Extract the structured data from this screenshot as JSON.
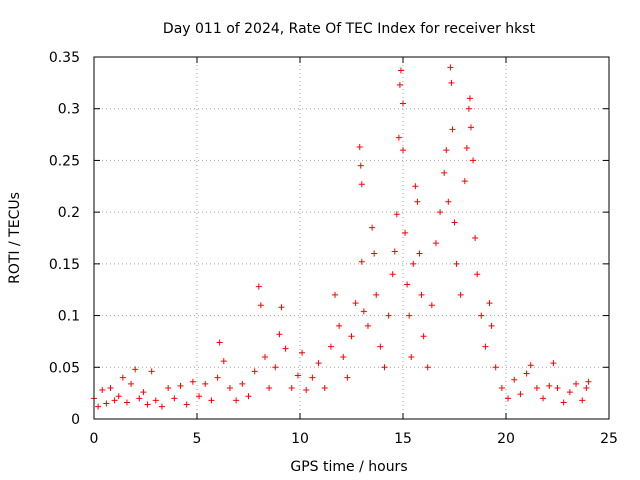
{
  "chart_data": {
    "type": "scatter",
    "title": "Day 011 of 2024, Rate Of TEC Index for receiver hkst",
    "xlabel": "GPS time / hours",
    "ylabel": "ROTI / TECUs",
    "xlim": [
      0,
      25
    ],
    "ylim": [
      0,
      0.35
    ],
    "x_ticks": [
      0,
      5,
      10,
      15,
      20,
      25
    ],
    "y_ticks": [
      0,
      0.05,
      0.1,
      0.15,
      0.2,
      0.25,
      0.3,
      0.35
    ],
    "x_tick_labels": [
      "0",
      "5",
      "10",
      "15",
      "20",
      "25"
    ],
    "y_tick_labels": [
      "0",
      "0.05",
      "0.1",
      "0.15",
      "0.2",
      "0.25",
      "0.3",
      "0.35"
    ],
    "grid": true,
    "marker": "+",
    "color": "#ff0000",
    "series": [
      {
        "points": [
          [
            0.0,
            0.02
          ],
          [
            0.2,
            0.012
          ],
          [
            0.4,
            0.028
          ],
          [
            0.6,
            0.015
          ],
          [
            0.8,
            0.03
          ],
          [
            1.0,
            0.018
          ],
          [
            1.2,
            0.022
          ],
          [
            1.4,
            0.04
          ],
          [
            1.6,
            0.016
          ],
          [
            1.8,
            0.034
          ],
          [
            2.0,
            0.048
          ],
          [
            2.2,
            0.02
          ],
          [
            2.4,
            0.026
          ],
          [
            2.6,
            0.014
          ],
          [
            2.8,
            0.046
          ],
          [
            3.0,
            0.018
          ],
          [
            3.3,
            0.012
          ],
          [
            3.6,
            0.03
          ],
          [
            3.9,
            0.02
          ],
          [
            4.2,
            0.032
          ],
          [
            4.5,
            0.014
          ],
          [
            4.8,
            0.036
          ],
          [
            5.1,
            0.022
          ],
          [
            5.4,
            0.034
          ],
          [
            5.7,
            0.018
          ],
          [
            6.0,
            0.04
          ],
          [
            6.1,
            0.074
          ],
          [
            6.3,
            0.056
          ],
          [
            6.6,
            0.03
          ],
          [
            6.9,
            0.018
          ],
          [
            7.2,
            0.034
          ],
          [
            7.5,
            0.022
          ],
          [
            7.8,
            0.046
          ],
          [
            8.0,
            0.128
          ],
          [
            8.1,
            0.11
          ],
          [
            8.3,
            0.06
          ],
          [
            8.5,
            0.03
          ],
          [
            8.8,
            0.05
          ],
          [
            9.0,
            0.082
          ],
          [
            9.1,
            0.108
          ],
          [
            9.3,
            0.068
          ],
          [
            9.6,
            0.03
          ],
          [
            9.9,
            0.042
          ],
          [
            10.1,
            0.064
          ],
          [
            10.3,
            0.028
          ],
          [
            10.6,
            0.04
          ],
          [
            10.9,
            0.054
          ],
          [
            11.2,
            0.03
          ],
          [
            11.5,
            0.07
          ],
          [
            11.7,
            0.12
          ],
          [
            11.9,
            0.09
          ],
          [
            12.1,
            0.06
          ],
          [
            12.3,
            0.04
          ],
          [
            12.5,
            0.08
          ],
          [
            12.7,
            0.112
          ],
          [
            12.9,
            0.263
          ],
          [
            12.95,
            0.245
          ],
          [
            13.0,
            0.227
          ],
          [
            13.0,
            0.152
          ],
          [
            13.1,
            0.104
          ],
          [
            13.3,
            0.09
          ],
          [
            13.5,
            0.185
          ],
          [
            13.6,
            0.16
          ],
          [
            13.7,
            0.12
          ],
          [
            13.9,
            0.07
          ],
          [
            14.1,
            0.05
          ],
          [
            14.3,
            0.1
          ],
          [
            14.5,
            0.14
          ],
          [
            14.6,
            0.162
          ],
          [
            14.7,
            0.198
          ],
          [
            14.8,
            0.272
          ],
          [
            14.85,
            0.323
          ],
          [
            14.9,
            0.337
          ],
          [
            15.0,
            0.305
          ],
          [
            15.0,
            0.26
          ],
          [
            15.1,
            0.18
          ],
          [
            15.2,
            0.13
          ],
          [
            15.3,
            0.1
          ],
          [
            15.4,
            0.06
          ],
          [
            15.5,
            0.15
          ],
          [
            15.6,
            0.225
          ],
          [
            15.7,
            0.21
          ],
          [
            15.8,
            0.16
          ],
          [
            15.9,
            0.12
          ],
          [
            16.0,
            0.08
          ],
          [
            16.2,
            0.05
          ],
          [
            16.4,
            0.11
          ],
          [
            16.6,
            0.17
          ],
          [
            16.8,
            0.2
          ],
          [
            17.0,
            0.238
          ],
          [
            17.1,
            0.26
          ],
          [
            17.2,
            0.21
          ],
          [
            17.3,
            0.34
          ],
          [
            17.35,
            0.325
          ],
          [
            17.4,
            0.28
          ],
          [
            17.5,
            0.19
          ],
          [
            17.6,
            0.15
          ],
          [
            17.8,
            0.12
          ],
          [
            18.0,
            0.23
          ],
          [
            18.1,
            0.262
          ],
          [
            18.2,
            0.3
          ],
          [
            18.25,
            0.31
          ],
          [
            18.3,
            0.282
          ],
          [
            18.4,
            0.25
          ],
          [
            18.5,
            0.175
          ],
          [
            18.6,
            0.14
          ],
          [
            18.8,
            0.1
          ],
          [
            19.0,
            0.07
          ],
          [
            19.2,
            0.112
          ],
          [
            19.3,
            0.09
          ],
          [
            19.5,
            0.05
          ],
          [
            19.8,
            0.03
          ],
          [
            20.1,
            0.02
          ],
          [
            20.4,
            0.038
          ],
          [
            20.7,
            0.024
          ],
          [
            21.0,
            0.044
          ],
          [
            21.2,
            0.052
          ],
          [
            21.5,
            0.03
          ],
          [
            21.8,
            0.02
          ],
          [
            22.1,
            0.032
          ],
          [
            22.3,
            0.054
          ],
          [
            22.5,
            0.03
          ],
          [
            22.8,
            0.016
          ],
          [
            23.1,
            0.026
          ],
          [
            23.4,
            0.034
          ],
          [
            23.7,
            0.018
          ],
          [
            23.9,
            0.03
          ],
          [
            24.0,
            0.036
          ]
        ]
      }
    ]
  }
}
